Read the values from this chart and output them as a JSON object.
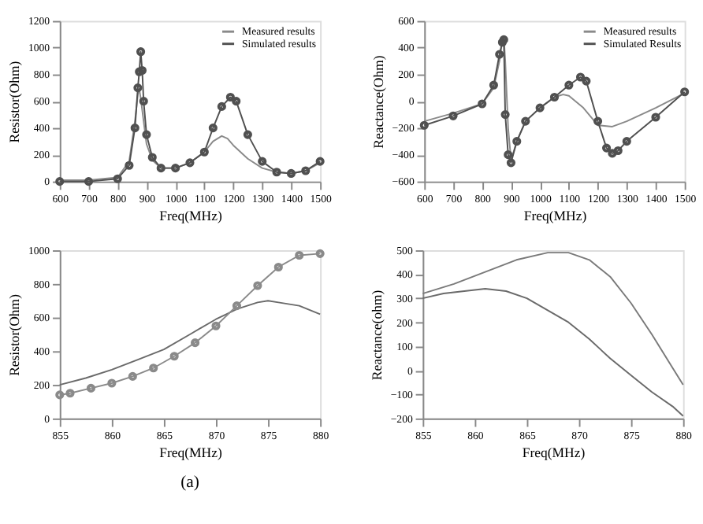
{
  "chart_data": [
    {
      "type": "line",
      "xlabel": "Freq(MHz)",
      "ylabel": "Resistor(Ohm)",
      "xlim": [
        600,
        1500
      ],
      "xticks": [
        600,
        700,
        800,
        900,
        1000,
        1100,
        1200,
        1300,
        1400,
        1500
      ],
      "ylim": [
        0,
        1200
      ],
      "yticks": [
        0,
        200,
        400,
        600,
        800,
        1000,
        1200
      ],
      "grid": false,
      "legend": "top right",
      "series": [
        {
          "name": "Measured results",
          "color": "#8a8a8a",
          "marker": "none",
          "x": [
            600,
            700,
            800,
            840,
            860,
            870,
            875,
            880,
            890,
            900,
            920,
            950,
            1000,
            1050,
            1100,
            1130,
            1160,
            1180,
            1200,
            1250,
            1300,
            1350,
            1400,
            1450,
            1500
          ],
          "values": [
            10,
            10,
            30,
            150,
            450,
            650,
            690,
            620,
            450,
            280,
            160,
            100,
            100,
            140,
            220,
            300,
            340,
            320,
            270,
            170,
            100,
            70,
            60,
            80,
            140
          ]
        },
        {
          "name": "Simulated results",
          "color": "#505050",
          "marker": "circle",
          "x": [
            600,
            700,
            800,
            840,
            860,
            870,
            875,
            880,
            885,
            890,
            900,
            920,
            950,
            1000,
            1050,
            1100,
            1130,
            1160,
            1190,
            1210,
            1250,
            1300,
            1350,
            1400,
            1450,
            1500
          ],
          "values": [
            0,
            0,
            20,
            120,
            400,
            700,
            820,
            970,
            830,
            600,
            350,
            180,
            100,
            100,
            140,
            220,
            400,
            560,
            630,
            600,
            350,
            150,
            70,
            60,
            80,
            150
          ]
        }
      ]
    },
    {
      "type": "line",
      "xlabel": "Freq(MHz)",
      "ylabel": "Reactance(Ohm)",
      "xlim": [
        600,
        1500
      ],
      "xticks": [
        600,
        700,
        800,
        900,
        1000,
        1100,
        1200,
        1300,
        1400,
        1500
      ],
      "ylim": [
        -600,
        600
      ],
      "yticks": [
        -600,
        -400,
        -200,
        0,
        200,
        400,
        600
      ],
      "grid": false,
      "legend": "top right",
      "series": [
        {
          "name": "Measured results",
          "color": "#8a8a8a",
          "marker": "none",
          "x": [
            600,
            700,
            800,
            840,
            860,
            870,
            875,
            880,
            890,
            900,
            920,
            950,
            1000,
            1050,
            1080,
            1100,
            1150,
            1200,
            1250,
            1300,
            1400,
            1500
          ],
          "values": [
            -150,
            -90,
            -20,
            100,
            300,
            460,
            480,
            300,
            -200,
            -440,
            -300,
            -150,
            -50,
            30,
            50,
            40,
            -50,
            -180,
            -190,
            -150,
            -50,
            60
          ]
        },
        {
          "name": "Simulated Results",
          "color": "#505050",
          "marker": "circle",
          "x": [
            600,
            700,
            800,
            840,
            860,
            870,
            875,
            880,
            890,
            900,
            920,
            950,
            1000,
            1050,
            1100,
            1140,
            1160,
            1200,
            1230,
            1250,
            1270,
            1300,
            1400,
            1500
          ],
          "values": [
            -180,
            -110,
            -20,
            120,
            350,
            440,
            460,
            -100,
            -400,
            -460,
            -300,
            -150,
            -50,
            30,
            120,
            180,
            150,
            -150,
            -350,
            -390,
            -370,
            -300,
            -120,
            70
          ]
        }
      ]
    },
    {
      "type": "line",
      "xlabel": "Freq(MHz)",
      "ylabel": "Resistor(Ohm)",
      "xlim": [
        855,
        880
      ],
      "xticks": [
        855,
        860,
        865,
        870,
        875,
        880
      ],
      "ylim": [
        0,
        1000
      ],
      "yticks": [
        0,
        200,
        400,
        600,
        800,
        1000
      ],
      "grid": false,
      "annotations": [
        "(a)"
      ],
      "series": [
        {
          "color": "#6a6a6a",
          "marker": "none",
          "x": [
            855,
            857.5,
            860,
            862.5,
            865,
            867.5,
            870,
            871,
            872,
            873,
            874,
            875,
            876,
            878,
            880
          ],
          "values": [
            200,
            240,
            290,
            350,
            410,
            500,
            590,
            620,
            650,
            670,
            690,
            700,
            690,
            670,
            620
          ]
        },
        {
          "color": "#8a8a8a",
          "marker": "circle",
          "x": [
            855,
            856,
            858,
            860,
            862,
            864,
            866,
            868,
            870,
            872,
            874,
            876,
            878,
            880
          ],
          "values": [
            140,
            150,
            180,
            210,
            250,
            300,
            370,
            450,
            550,
            670,
            790,
            900,
            970,
            980
          ]
        }
      ]
    },
    {
      "type": "line",
      "xlabel": "Freq(MHz)",
      "ylabel": "Reactance(ohm)",
      "xlim": [
        855,
        880
      ],
      "xticks": [
        855,
        860,
        865,
        870,
        875,
        880
      ],
      "ylim": [
        -200,
        500
      ],
      "yticks": [
        -200,
        -100,
        0,
        100,
        200,
        300,
        400,
        500
      ],
      "grid": false,
      "series": [
        {
          "color": "#7a7a7a",
          "marker": "none",
          "x": [
            855,
            858,
            861,
            864,
            867,
            869,
            871,
            873,
            875,
            877,
            879,
            880
          ],
          "values": [
            320,
            360,
            410,
            460,
            490,
            490,
            460,
            390,
            280,
            150,
            10,
            -60
          ]
        },
        {
          "color": "#6a6a6a",
          "marker": "none",
          "x": [
            855,
            857,
            859,
            861,
            863,
            865,
            867,
            869,
            871,
            873,
            875,
            877,
            879,
            880
          ],
          "values": [
            300,
            320,
            330,
            340,
            330,
            300,
            250,
            200,
            130,
            50,
            -20,
            -90,
            -150,
            -190
          ]
        }
      ]
    }
  ]
}
